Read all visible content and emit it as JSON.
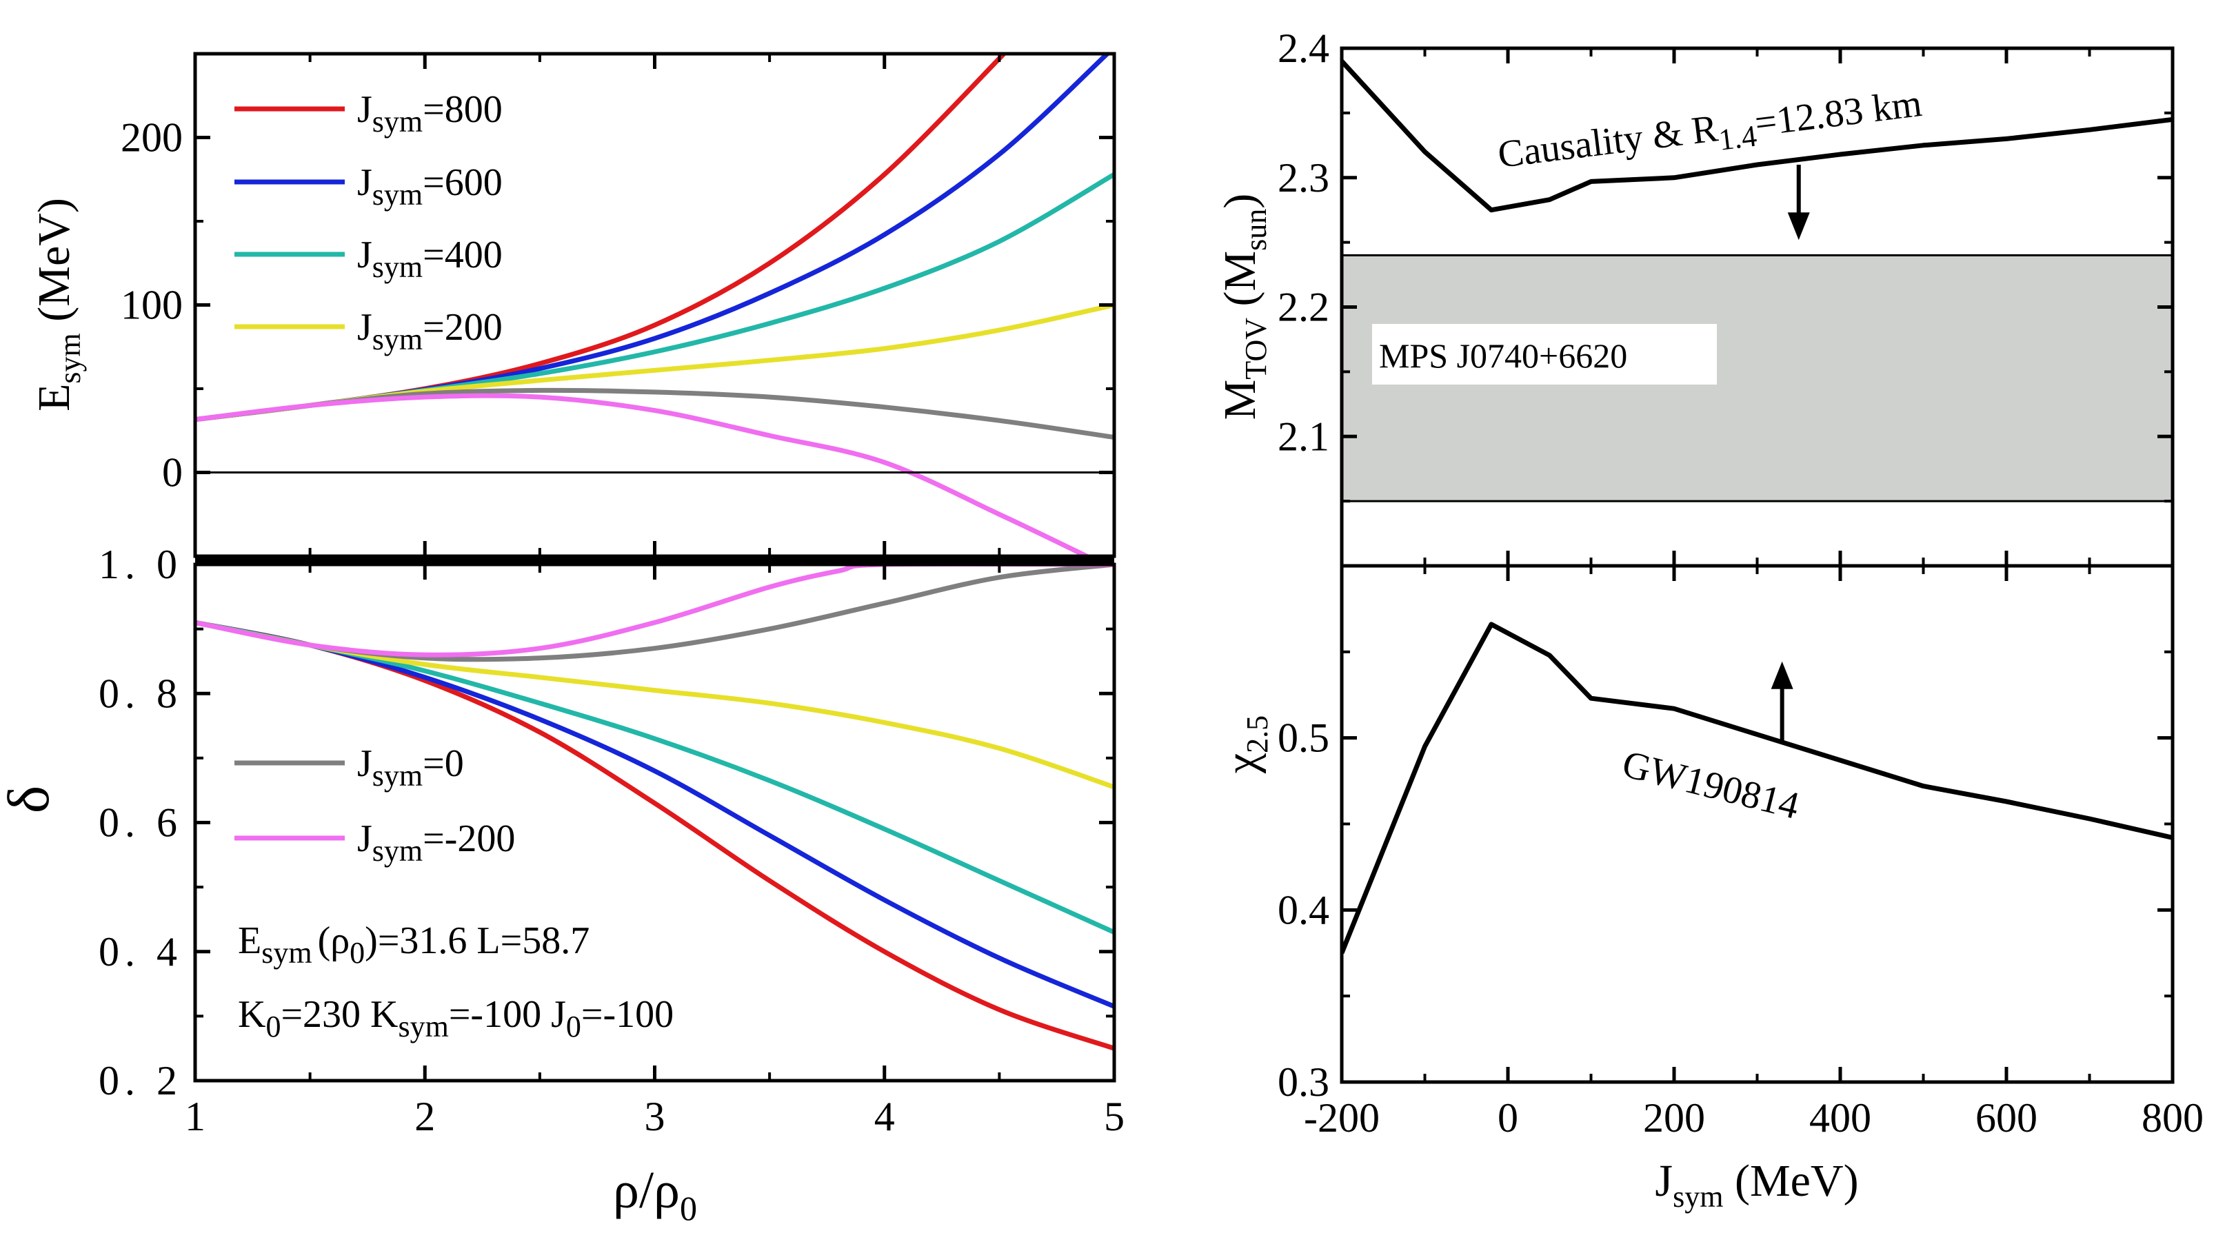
{
  "figure": {
    "panel_count": 4
  },
  "chart_data": [
    {
      "id": "esym",
      "type": "line",
      "title": "",
      "xlabel": "ρ/ρ0",
      "ylabel": "Esym (MeV)",
      "xlim": [
        1,
        5
      ],
      "ylim": [
        -50,
        250
      ],
      "yticks": [
        0,
        100,
        200
      ],
      "series": [
        {
          "name": "Jsym=800",
          "color": "#e0191c",
          "x": [
            1.0,
            1.5,
            2.0,
            2.5,
            3.0,
            3.5,
            4.0,
            4.52
          ],
          "y": [
            31.6,
            40,
            50,
            65,
            88,
            125,
            178,
            250
          ]
        },
        {
          "name": "Jsym=600",
          "color": "#1525d8",
          "x": [
            1.0,
            1.5,
            2.0,
            2.5,
            3.0,
            3.5,
            4.0,
            4.5,
            4.97
          ],
          "y": [
            31.6,
            40,
            49.5,
            62,
            80,
            107,
            142,
            190,
            250
          ]
        },
        {
          "name": "Jsym=400",
          "color": "#22b7a8",
          "x": [
            1.0,
            1.5,
            2.0,
            2.5,
            3.0,
            3.5,
            4.0,
            4.5,
            5.0
          ],
          "y": [
            31.6,
            40,
            49,
            59,
            72,
            89,
            110,
            138,
            178
          ]
        },
        {
          "name": "Jsym=200",
          "color": "#e7e02a",
          "x": [
            1.0,
            1.5,
            2.0,
            2.5,
            3.0,
            3.5,
            4.0,
            4.5,
            5.0
          ],
          "y": [
            31.6,
            40,
            48.5,
            55,
            61,
            67,
            74,
            85,
            100
          ]
        },
        {
          "name": "Jsym=0",
          "color": "#7f7f7f",
          "x": [
            1.0,
            1.5,
            2.0,
            2.5,
            3.0,
            3.5,
            4.0,
            4.5,
            5.0
          ],
          "y": [
            31.6,
            40,
            47,
            49,
            48,
            45,
            39,
            31,
            21
          ]
        },
        {
          "name": "Jsym=-200",
          "color": "#f06ef0",
          "x": [
            1.0,
            1.5,
            2.0,
            2.5,
            3.0,
            3.5,
            4.0,
            4.5,
            4.88
          ],
          "y": [
            31.6,
            40,
            45,
            45,
            37,
            22,
            6,
            -25,
            -50
          ]
        }
      ],
      "hline": 0
    },
    {
      "id": "delta",
      "type": "line",
      "xlabel": "ρ/ρ0",
      "ylabel": "δ",
      "xlim": [
        1,
        5
      ],
      "ylim": [
        0.2,
        1.0
      ],
      "yticks": [
        0.2,
        0.4,
        0.6,
        0.8,
        1.0
      ],
      "xticks": [
        1,
        2,
        3,
        4,
        5
      ],
      "series": [
        {
          "name": "Jsym=800",
          "color": "#e0191c",
          "x": [
            1.0,
            1.5,
            2.0,
            2.5,
            3.0,
            3.5,
            4.0,
            4.5,
            5.0
          ],
          "y": [
            0.91,
            0.875,
            0.82,
            0.74,
            0.63,
            0.51,
            0.4,
            0.31,
            0.25
          ]
        },
        {
          "name": "Jsym=600",
          "color": "#1525d8",
          "x": [
            1.0,
            1.5,
            2.0,
            2.5,
            3.0,
            3.5,
            4.0,
            4.5,
            5.0
          ],
          "y": [
            0.91,
            0.875,
            0.825,
            0.76,
            0.68,
            0.58,
            0.48,
            0.39,
            0.315
          ]
        },
        {
          "name": "Jsym=400",
          "color": "#22b7a8",
          "x": [
            1.0,
            1.5,
            2.0,
            2.5,
            3.0,
            3.5,
            4.0,
            4.5,
            5.0
          ],
          "y": [
            0.91,
            0.875,
            0.835,
            0.785,
            0.73,
            0.665,
            0.59,
            0.51,
            0.43
          ]
        },
        {
          "name": "Jsym=200",
          "color": "#e7e02a",
          "x": [
            1.0,
            1.5,
            2.0,
            2.5,
            3.0,
            3.5,
            4.0,
            4.5,
            5.0
          ],
          "y": [
            0.91,
            0.875,
            0.845,
            0.825,
            0.805,
            0.785,
            0.755,
            0.715,
            0.655
          ]
        },
        {
          "name": "Jsym=0",
          "color": "#7f7f7f",
          "x": [
            1.0,
            1.5,
            2.0,
            2.5,
            3.0,
            3.5,
            4.0,
            4.5,
            5.0
          ],
          "y": [
            0.91,
            0.875,
            0.855,
            0.855,
            0.87,
            0.9,
            0.94,
            0.98,
            1.0
          ]
        },
        {
          "name": "Jsym=-200",
          "color": "#f06ef0",
          "x": [
            1.0,
            1.5,
            2.0,
            2.5,
            3.0,
            3.5,
            3.8,
            4.0,
            5.0
          ],
          "y": [
            0.91,
            0.875,
            0.86,
            0.87,
            0.91,
            0.965,
            0.99,
            1.0,
            1.0
          ]
        }
      ],
      "annotations": [
        "Esym(ρ0)=31.6  L=58.7",
        "K0=230  Ksym=-100  J0=-100"
      ]
    },
    {
      "id": "mtov",
      "type": "line",
      "xlabel": "Jsym (MeV)",
      "ylabel": "MTOV (Msun)",
      "xlim": [
        -200,
        800
      ],
      "ylim": [
        2.0,
        2.4
      ],
      "yticks": [
        2.1,
        2.2,
        2.3,
        2.4
      ],
      "series": [
        {
          "name": "Causality & R1.4=12.83 km",
          "color": "#000000",
          "x": [
            -200,
            -100,
            -20,
            50,
            100,
            200,
            300,
            400,
            500,
            600,
            700,
            800
          ],
          "y": [
            2.39,
            2.32,
            2.275,
            2.283,
            2.297,
            2.3,
            2.31,
            2.318,
            2.325,
            2.33,
            2.337,
            2.345
          ]
        }
      ],
      "band": {
        "label": "MPS J0740+6620",
        "y": [
          2.05,
          2.24
        ],
        "color": "#cfd1ce"
      },
      "arrow": {
        "x": 350,
        "from": 2.31,
        "to": 2.255,
        "direction": "down"
      }
    },
    {
      "id": "chi",
      "type": "line",
      "xlabel": "Jsym (MeV)",
      "ylabel": "χ2.5",
      "xlim": [
        -200,
        800
      ],
      "ylim": [
        0.3,
        0.6
      ],
      "yticks": [
        0.3,
        0.4,
        0.5
      ],
      "xticks": [
        -200,
        0,
        200,
        400,
        600,
        800
      ],
      "series": [
        {
          "name": "GW190814",
          "color": "#000000",
          "x": [
            -200,
            -100,
            -20,
            50,
            100,
            200,
            300,
            400,
            500,
            600,
            700,
            800
          ],
          "y": [
            0.375,
            0.495,
            0.566,
            0.548,
            0.523,
            0.517,
            0.502,
            0.487,
            0.472,
            0.463,
            0.453,
            0.442
          ]
        }
      ],
      "arrow": {
        "x": 330,
        "from": 0.498,
        "to": 0.542,
        "direction": "up"
      }
    }
  ],
  "labels": {
    "legend_top": [
      {
        "main": "J",
        "sub": "sym",
        "rest": "=800"
      },
      {
        "main": "J",
        "sub": "sym",
        "rest": "=600"
      },
      {
        "main": "J",
        "sub": "sym",
        "rest": "=400"
      },
      {
        "main": "J",
        "sub": "sym",
        "rest": "=200"
      }
    ],
    "legend_bottom": [
      {
        "main": "J",
        "sub": "sym",
        "rest": "=0"
      },
      {
        "main": "J",
        "sub": "sym",
        "rest": "=-200"
      }
    ],
    "esym_ylabel": {
      "main": "E",
      "sub": "sym",
      "rest": " (MeV)"
    },
    "delta_ylabel": "δ",
    "left_xlabel": {
      "rho": "ρ/ρ",
      "sub": "0"
    },
    "param1": {
      "e": "E",
      "esub": "sym",
      "open": "(ρ",
      "osub": "0",
      "close": ")=31.6  L=58.7"
    },
    "param2": {
      "k": "K",
      "ksub": "0",
      "kval": "=230  K",
      "ksymsub": "sym",
      "ksymval": "=-100  J",
      "jsub": "0",
      "jval": "=-100"
    },
    "mtov_ylabel": {
      "m": "M",
      "msub": "TOV",
      "mid": " (M",
      "sunsub": "sun",
      "close": ")"
    },
    "chi_ylabel": {
      "chi": "χ",
      "sub": "2.5"
    },
    "right_xlabel": {
      "j": "J",
      "sub": "sym",
      "rest": " (MeV)"
    },
    "causality": {
      "a": "Causality & R",
      "sub": "1.4",
      "b": "=12.83 km"
    },
    "band_label": "MPS J0740+6620",
    "gw_label": "GW190814",
    "tick_esym": [
      "0",
      "100",
      "200"
    ],
    "tick_delta": [
      "0. 2",
      "0. 4",
      "0. 6",
      "0. 8",
      "1. 0"
    ],
    "tick_left_x": [
      "1",
      "2",
      "3",
      "4",
      "5"
    ],
    "tick_mtov": [
      "2.1",
      "2.2",
      "2.3",
      "2.4"
    ],
    "tick_chi": [
      "0.3",
      "0.4",
      "0.5"
    ],
    "tick_right_x": [
      "-200",
      "0",
      "200",
      "400",
      "600",
      "800"
    ]
  }
}
